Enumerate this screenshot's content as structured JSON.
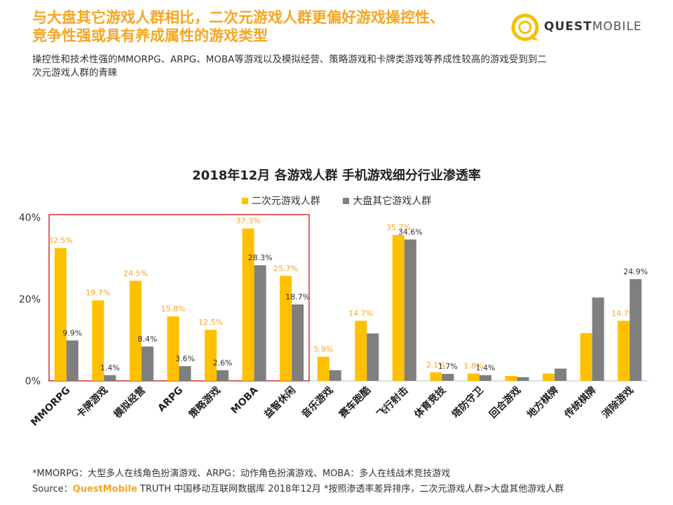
{
  "header": {
    "title_line1": "与大盘其它游戏人群相比，二次元游戏人群更偏好游戏操控性、",
    "title_line2": "竞争性强或具有养成属性的游戏类型",
    "subtitle_line1": "操控性和技术性强的MMORPG、ARPG、MOBA等游戏以及模拟经营、策略游戏和卡牌类游戏等养成性较高的游戏受到到二",
    "subtitle_line2": "次元游戏人群的青睐"
  },
  "logo": {
    "text_bold": "QUEST",
    "text_light": "MOBILE"
  },
  "colors": {
    "accent": "#f5a623",
    "series_a": "#ffc000",
    "series_b": "#7f7f7f",
    "highlight_box": "#c00000"
  },
  "chart_data": {
    "type": "bar",
    "title": "2018年12月 各游戏人群 手机游戏细分行业渗透率",
    "categories": [
      "MMORPG",
      "卡牌游戏",
      "模拟经营",
      "ARPG",
      "策略游戏",
      "MOBA",
      "益智休闲",
      "音乐游戏",
      "赛车跑酷",
      "飞行射击",
      "体育竞技",
      "塔防守卫",
      "回合游戏",
      "地方棋牌",
      "传统棋牌",
      "消除游戏"
    ],
    "series": [
      {
        "name": "二次元游戏人群",
        "values": [
          32.5,
          19.7,
          24.5,
          15.8,
          12.5,
          37.3,
          25.7,
          5.9,
          14.7,
          35.7,
          2.1,
          1.8,
          1.2,
          1.8,
          11.7,
          14.7
        ],
        "labels": [
          "32.5%",
          "19.7%",
          "24.5%",
          "15.8%",
          "12.5%",
          "37.3%",
          "25.7%",
          "5.9%",
          "14.7%",
          "35.7%",
          "2.1%",
          "1.8%",
          "",
          "",
          "",
          "14.7%"
        ]
      },
      {
        "name": "大盘其它游戏人群",
        "values": [
          9.9,
          1.4,
          8.4,
          3.6,
          2.6,
          28.3,
          18.7,
          2.6,
          11.6,
          34.6,
          1.7,
          1.4,
          0.9,
          3.0,
          20.4,
          24.9
        ],
        "labels": [
          "9.9%",
          "1.4%",
          "8.4%",
          "3.6%",
          "2.6%",
          "28.3%",
          "18.7%",
          "",
          "",
          "34.6%",
          "1.7%",
          "1.4%",
          "",
          "",
          "",
          "24.9%"
        ]
      }
    ],
    "y_ticks": [
      "0%",
      "20%",
      "40%"
    ],
    "ylim": [
      0,
      40
    ],
    "legend_position": "top-center",
    "highlight_range": [
      0,
      6
    ],
    "grid": false
  },
  "footer": {
    "footnote": "*MMORPG：大型多人在线角色扮演游戏、ARPG：动作角色扮演游戏、MOBA：多人在线战术竞技游戏",
    "source_label": "Source：",
    "source_brand": "QuestMobile",
    "source_text": " TRUTH 中国移动互联网数据库 2018年12月   *按照渗透率差异排序，二次元游戏人群>大盘其他游戏人群"
  }
}
